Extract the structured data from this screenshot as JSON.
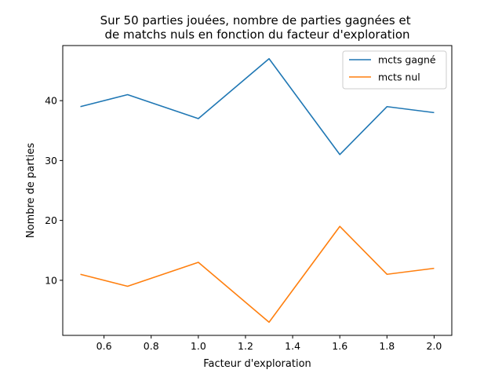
{
  "chart_data": {
    "type": "line",
    "title": "Sur 50 parties jouées, nombre de parties gagnées et\nde matchs nuls en fonction du facteur d'exploration",
    "xlabel": "Facteur d'exploration",
    "ylabel": "Nombre de parties",
    "x": [
      0.5,
      0.7,
      1.0,
      1.3,
      1.6,
      1.8,
      2.0
    ],
    "xlim": [
      0.425,
      2.075
    ],
    "ylim": [
      0.8,
      49.2
    ],
    "xticks": [
      "0.6",
      "0.8",
      "1.0",
      "1.2",
      "1.4",
      "1.6",
      "1.8",
      "2.0"
    ],
    "yticks": [
      "10",
      "20",
      "30",
      "40"
    ],
    "grid": false,
    "legend_position": "top-right",
    "series": [
      {
        "name": "mcts gagné",
        "color": "#1f77b4",
        "values": [
          39,
          41,
          37,
          47,
          31,
          39,
          38
        ]
      },
      {
        "name": "mcts nul",
        "color": "#ff7f0e",
        "values": [
          11,
          9,
          13,
          3,
          19,
          11,
          12
        ]
      }
    ]
  }
}
